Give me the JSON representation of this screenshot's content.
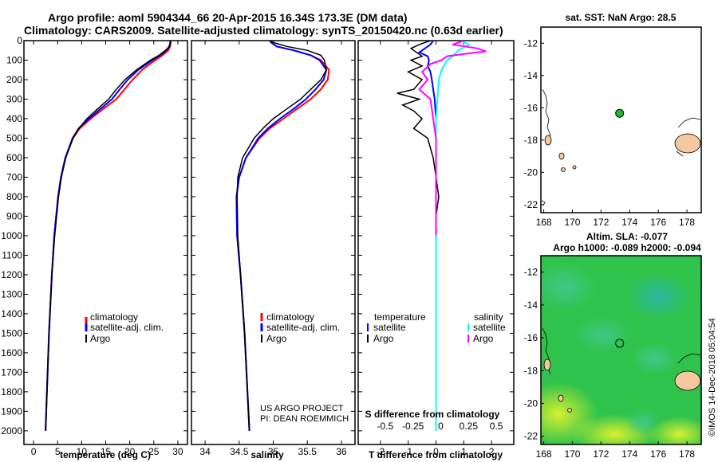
{
  "title_line1": "Argo profile: aoml 5904344_66 20-Apr-2015 16.34S 173.3E (DM data)",
  "title_line2": "Climatology: CARS2009. Satellite-adjusted climatology: synTS_20150420.nc (0.63d earlier)",
  "sst_title": "sat. SST: NaN Argo: 28.5",
  "altim_title1": "Altim. SLA: -0.077",
  "altim_title2": "Argo h1000: -0.089 h2000: -0.094",
  "credit1": "US ARGO PROJECT",
  "credit2": "PI: DEAN ROEMMICH",
  "timestamp": "©IMOS 14-Dec-2018 05:04:54",
  "colors": {
    "climatology": "#ff0000",
    "satellite": "#0000ff",
    "argo": "#000000",
    "sat_salinity": "#00ffff",
    "argo_salinity": "#ff00ff",
    "argo_marker": "#22aa22",
    "land": "#f5c8a0"
  },
  "chart_data": [
    {
      "type": "line",
      "xlabel": "temperature (deg C)",
      "xlim": [
        -2,
        32
      ],
      "xticks": [
        0,
        5,
        10,
        15,
        20,
        25,
        30
      ],
      "ylim": [
        2070,
        0
      ],
      "yticks": [
        0,
        100,
        200,
        300,
        400,
        500,
        600,
        700,
        800,
        900,
        1000,
        1100,
        1200,
        1300,
        1400,
        1500,
        1600,
        1700,
        1800,
        1900,
        2000
      ],
      "legend": [
        "climatology",
        "satellite-adj. clim.",
        "Argo"
      ],
      "series": [
        {
          "name": "climatology",
          "depth": [
            0,
            10,
            30,
            50,
            75,
            100,
            150,
            200,
            250,
            300,
            350,
            400,
            450,
            500,
            600,
            700,
            800,
            1000,
            1200,
            1500,
            2000
          ],
          "values": [
            28.6,
            28.5,
            28.4,
            28.0,
            26.8,
            25.3,
            22.6,
            20.6,
            18.9,
            17.2,
            14.5,
            11.9,
            9.6,
            8.2,
            6.6,
            5.7,
            5.1,
            4.3,
            3.8,
            3.2,
            2.5
          ]
        },
        {
          "name": "satellite-adj. clim.",
          "depth": [
            0,
            10,
            30,
            50,
            75,
            100,
            150,
            200,
            250,
            300,
            350,
            400,
            450,
            500,
            600,
            700,
            800,
            1000,
            1200,
            1500,
            2000
          ],
          "values": [
            28.5,
            28.4,
            28.2,
            27.6,
            26.3,
            24.7,
            21.8,
            19.6,
            17.9,
            16.3,
            13.9,
            11.5,
            9.4,
            8.1,
            6.6,
            5.7,
            5.1,
            4.3,
            3.8,
            3.2,
            2.5
          ]
        },
        {
          "name": "Argo",
          "depth": [
            0,
            10,
            30,
            50,
            75,
            100,
            150,
            200,
            250,
            300,
            350,
            400,
            450,
            500,
            600,
            700,
            800,
            1000,
            1200,
            1500,
            2000
          ],
          "values": [
            28.5,
            28.5,
            28.3,
            27.4,
            26.1,
            24.3,
            21.4,
            19.0,
            17.2,
            15.6,
            13.3,
            11.1,
            9.4,
            8.2,
            6.7,
            5.8,
            5.2,
            4.4,
            3.8,
            3.2,
            2.5
          ]
        }
      ]
    },
    {
      "type": "line",
      "xlabel": "salinity",
      "xlim": [
        33.8,
        36.2
      ],
      "xticks": [
        34,
        34.5,
        35,
        35.5,
        36
      ],
      "ylim": [
        2070,
        0
      ],
      "legend": [
        "climatology",
        "satellite-adj. clim.",
        "Argo"
      ],
      "series": [
        {
          "name": "climatology",
          "depth": [
            0,
            10,
            30,
            50,
            75,
            100,
            150,
            200,
            250,
            300,
            350,
            400,
            450,
            500,
            600,
            700,
            800,
            1000,
            1200,
            1500,
            2000
          ],
          "values": [
            34.95,
            34.97,
            35.05,
            35.3,
            35.55,
            35.7,
            35.82,
            35.8,
            35.7,
            35.55,
            35.35,
            35.15,
            34.95,
            34.8,
            34.6,
            34.5,
            34.46,
            34.47,
            34.52,
            34.58,
            34.65
          ]
        },
        {
          "name": "satellite-adj. clim.",
          "depth": [
            0,
            10,
            30,
            50,
            75,
            100,
            150,
            200,
            250,
            300,
            350,
            400,
            450,
            500,
            600,
            700,
            800,
            1000,
            1200,
            1500,
            2000
          ],
          "values": [
            34.95,
            34.97,
            35.05,
            35.3,
            35.55,
            35.68,
            35.78,
            35.74,
            35.62,
            35.48,
            35.3,
            35.1,
            34.92,
            34.78,
            34.6,
            34.5,
            34.46,
            34.47,
            34.52,
            34.58,
            34.65
          ]
        },
        {
          "name": "Argo",
          "depth": [
            0,
            10,
            30,
            50,
            75,
            100,
            150,
            200,
            250,
            300,
            350,
            400,
            450,
            500,
            600,
            700,
            800,
            1000,
            1200,
            1500,
            2000
          ],
          "values": [
            34.95,
            35.0,
            35.2,
            35.5,
            35.7,
            35.75,
            35.78,
            35.7,
            35.55,
            35.4,
            35.2,
            35.0,
            34.85,
            34.72,
            34.55,
            34.48,
            34.47,
            34.48,
            34.52,
            34.58,
            34.65
          ]
        }
      ]
    },
    {
      "type": "line",
      "xlabel": "T difference from climatology",
      "xlabel2": "S difference from climatology",
      "xlim": [
        -2.8,
        2.8
      ],
      "xticks": [
        -2,
        -1,
        0,
        1,
        2
      ],
      "xticks2_pos": [
        -2,
        -1,
        0,
        1,
        2
      ],
      "xticks2_labels": [
        "-0.5",
        "-0.25",
        "0",
        "0.25",
        "0.5"
      ],
      "ylim": [
        2070,
        0
      ],
      "legend_left_title": "temperature",
      "legend_right_title": "salinity",
      "legend": [
        "satellite",
        "Argo",
        "satellite",
        "Argo"
      ],
      "series": [
        {
          "name": "satellite",
          "group": "temperature",
          "depth": [
            0,
            20,
            40,
            60,
            80,
            100,
            130,
            160,
            200,
            250,
            300,
            400,
            500,
            600,
            800,
            1000,
            1500,
            2000
          ],
          "values": [
            -0.1,
            -0.2,
            -0.4,
            -0.6,
            -0.3,
            -0.25,
            -0.3,
            -0.2,
            -0.15,
            -0.1,
            -0.05,
            0,
            0,
            0,
            0,
            0,
            0,
            0
          ]
        },
        {
          "name": "Argo",
          "group": "temperature",
          "depth": [
            0,
            20,
            40,
            60,
            80,
            100,
            130,
            160,
            200,
            250,
            270,
            300,
            330,
            360,
            400,
            450,
            500,
            600,
            700,
            800,
            900,
            1000
          ],
          "values": [
            -0.2,
            -0.6,
            -0.9,
            -0.7,
            -0.5,
            -0.9,
            -0.5,
            -1.0,
            -0.5,
            -0.8,
            -1.4,
            -0.6,
            -1.2,
            -0.8,
            -0.5,
            -0.8,
            -0.3,
            -0.1,
            0,
            0.1,
            0,
            0
          ]
        },
        {
          "name": "satellite",
          "group": "salinity",
          "depth": [
            0,
            20,
            50,
            80,
            100,
            150,
            200,
            300,
            400,
            500,
            600,
            800,
            1000,
            1500,
            2000
          ],
          "values": [
            0.9,
            1.2,
            0.8,
            0.6,
            0.4,
            0.2,
            0.1,
            0.05,
            0,
            0,
            0,
            0,
            0,
            0,
            0
          ]
        },
        {
          "name": "Argo",
          "group": "salinity",
          "depth": [
            0,
            20,
            40,
            55,
            65,
            80,
            100,
            120,
            160,
            200,
            250,
            300,
            400,
            500,
            600,
            800,
            1000
          ],
          "values": [
            1.0,
            0.6,
            1.5,
            1.8,
            1.2,
            0.4,
            0.2,
            -0.2,
            -0.5,
            -0.3,
            -0.6,
            -0.2,
            -0.1,
            0,
            0,
            0,
            0
          ]
        }
      ]
    },
    {
      "type": "scatter",
      "title": "sat. SST: NaN Argo: 28.5",
      "xlim": [
        167.8,
        179
      ],
      "xticks": [
        168,
        170,
        172,
        174,
        176,
        178
      ],
      "ylim": [
        -22.5,
        -11
      ],
      "yticks": [
        -12,
        -14,
        -16,
        -18,
        -20,
        -22
      ],
      "points": [
        {
          "lon": 173.3,
          "lat": -16.34
        }
      ]
    },
    {
      "type": "heatmap",
      "title": "Altim. SLA: -0.077 / Argo h1000: -0.089 h2000: -0.094",
      "xlim": [
        167.8,
        179
      ],
      "xticks": [
        168,
        170,
        172,
        174,
        176,
        178
      ],
      "ylim": [
        -22.5,
        -11
      ],
      "yticks": [
        -12,
        -14,
        -16,
        -18,
        -20,
        -22
      ],
      "points": [
        {
          "lon": 173.3,
          "lat": -16.34
        }
      ]
    }
  ]
}
